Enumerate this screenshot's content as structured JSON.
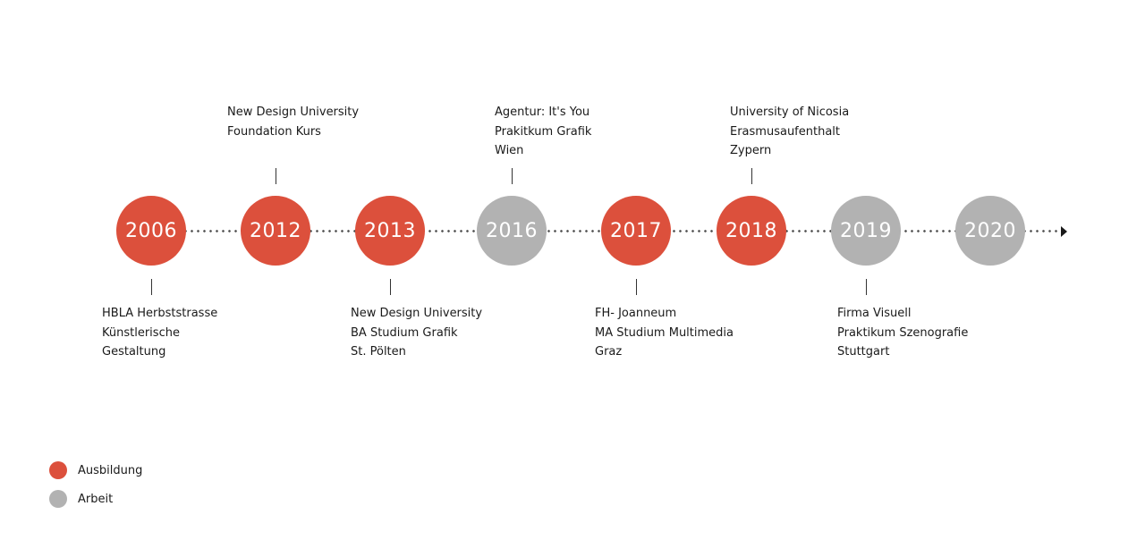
{
  "colors": {
    "ausbildung": "#dc503c",
    "arbeit": "#b2b2b2"
  },
  "timeline": {
    "nodes": [
      {
        "year": "2006",
        "category": "ausbildung",
        "side": "below",
        "lines": [
          "HBLA Herbststrasse",
          "Künstlerische",
          "Gestaltung"
        ]
      },
      {
        "year": "2012",
        "category": "ausbildung",
        "side": "above",
        "lines": [
          "New Design University",
          "Foundation Kurs"
        ]
      },
      {
        "year": "2013",
        "category": "ausbildung",
        "side": "below",
        "lines": [
          "New Design University",
          "BA Studium Grafik",
          "St. Pölten"
        ]
      },
      {
        "year": "2016",
        "category": "arbeit",
        "side": "above",
        "lines": [
          "Agentur: It's You",
          "Prakitkum Grafik",
          "Wien"
        ]
      },
      {
        "year": "2017",
        "category": "ausbildung",
        "side": "below",
        "lines": [
          "FH- Joanneum",
          "MA Studium Multimedia",
          "Graz"
        ]
      },
      {
        "year": "2018",
        "category": "ausbildung",
        "side": "above",
        "lines": [
          "University of Nicosia",
          "Erasmusaufenthalt",
          "Zypern"
        ]
      },
      {
        "year": "2019",
        "category": "arbeit",
        "side": "below",
        "lines": [
          "Firma Visuell",
          "Praktikum Szenografie",
          "Stuttgart"
        ]
      },
      {
        "year": "2020",
        "category": "arbeit",
        "side": "none",
        "lines": []
      }
    ]
  },
  "legend": {
    "items": [
      {
        "label": "Ausbildung",
        "category": "ausbildung"
      },
      {
        "label": "Arbeit",
        "category": "arbeit"
      }
    ]
  }
}
